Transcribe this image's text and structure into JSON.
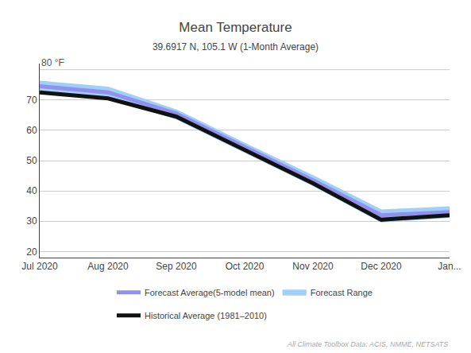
{
  "chart_data": {
    "type": "line",
    "title": "Mean Temperature",
    "subtitle": "39.6917 N, 105.1 W (1-Month Average)",
    "categories": [
      "Jul 2020",
      "Aug 2020",
      "Sep 2020",
      "Oct 2020",
      "Nov 2020",
      "Dec 2020",
      "Jan..."
    ],
    "series": [
      {
        "name": "Forecast Average(5-model mean)",
        "color": "#9090ee",
        "values": [
          74.5,
          72.5,
          65.5,
          54.5,
          43.5,
          32.0,
          33.0
        ]
      },
      {
        "name": "Forecast Range",
        "color": "#a0d0f8",
        "type": "band",
        "upper": [
          76.0,
          74.0,
          66.5,
          55.5,
          44.8,
          33.5,
          34.5
        ],
        "lower": [
          73.5,
          71.0,
          64.0,
          53.0,
          42.0,
          30.0,
          31.5
        ]
      },
      {
        "name": "Historical Average (1981–2010)",
        "color": "#111111",
        "values": [
          72.5,
          70.5,
          64.5,
          53.5,
          42.5,
          30.5,
          32.0
        ]
      }
    ],
    "ylim": [
      18,
      82
    ],
    "yticks": [
      20,
      30,
      40,
      50,
      60,
      70
    ],
    "grid": true,
    "legend": "bottom",
    "annotations": [
      {
        "text": "80 °F",
        "y": 80
      },
      {
        "text": "All Climate Toolbox Data: ACIS, NMME, NETSATS"
      }
    ]
  }
}
